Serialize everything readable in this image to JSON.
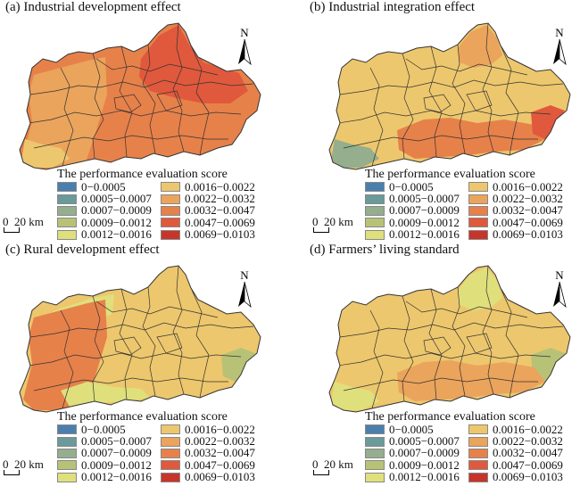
{
  "palette": {
    "blue": "#4a7fad",
    "teal": "#6b9a9a",
    "graygreen": "#94ae8e",
    "olive": "#b7c276",
    "yellow": "#dfe07c",
    "lightorange": "#edc76d",
    "orange": "#eba45b",
    "darkorange": "#e7814a",
    "redorange": "#e0593c",
    "red": "#c7352a",
    "boundary": "#333333"
  },
  "legend": {
    "title": "The performance evaluation score",
    "items": [
      {
        "label": "0−0.0005",
        "color": "#4a7fad"
      },
      {
        "label": "0.0005−0.0007",
        "color": "#6b9a9a"
      },
      {
        "label": "0.0007−0.0009",
        "color": "#94ae8e"
      },
      {
        "label": "0.0009−0.0012",
        "color": "#b7c276"
      },
      {
        "label": "0.0012−0.0016",
        "color": "#dfe07c"
      },
      {
        "label": "0.0016−0.0022",
        "color": "#edc76d"
      },
      {
        "label": "0.0022−0.0032",
        "color": "#eba45b"
      },
      {
        "label": "0.0032−0.0047",
        "color": "#e7814a"
      },
      {
        "label": "0.0047−0.0069",
        "color": "#e0593c"
      },
      {
        "label": "0.0069−0.0103",
        "color": "#c7352a"
      }
    ]
  },
  "scale_bar": {
    "zero": "0",
    "dist": "20 km"
  },
  "north_label": "N",
  "panels": [
    {
      "title": "(a) Industrial development effect",
      "base": "#e7814a",
      "patches": [
        {
          "color": "#eba45b",
          "cls": "west"
        },
        {
          "color": "#e0593c",
          "cls": "northeast"
        },
        {
          "color": "#edc76d",
          "cls": "southwest"
        }
      ]
    },
    {
      "title": "(b) Industrial integration effect",
      "base": "#edc76d",
      "patches": [
        {
          "color": "#eba45b",
          "cls": "north"
        },
        {
          "color": "#e7814a",
          "cls": "center"
        },
        {
          "color": "#94ae8e",
          "cls": "southwest"
        },
        {
          "color": "#e0593c",
          "cls": "east"
        }
      ]
    },
    {
      "title": "(c) Rural development effect",
      "base": "#edc76d",
      "patches": [
        {
          "color": "#dfe07c",
          "cls": "northwest"
        },
        {
          "color": "#b7c276",
          "cls": "east"
        },
        {
          "color": "#e7814a",
          "cls": "west"
        },
        {
          "color": "#dfe07c",
          "cls": "south"
        }
      ]
    },
    {
      "title": "(d) Farmers’ living standard",
      "base": "#edc76d",
      "patches": [
        {
          "color": "#dfe07c",
          "cls": "north"
        },
        {
          "color": "#b7c276",
          "cls": "east"
        },
        {
          "color": "#eba45b",
          "cls": "center"
        },
        {
          "color": "#dfe07c",
          "cls": "southwest"
        }
      ]
    }
  ]
}
